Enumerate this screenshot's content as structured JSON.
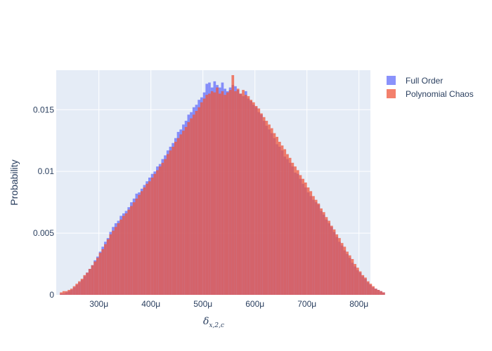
{
  "chart_data": {
    "type": "histogram",
    "xlabel": "δ",
    "xlabel_subscript": "x,2,c",
    "ylabel": "Probability",
    "x_range": [
      0.000218,
      0.000822
    ],
    "y_range": [
      0,
      0.0182
    ],
    "x_ticks": [
      {
        "value": 0.0003,
        "label": "300μ"
      },
      {
        "value": 0.0004,
        "label": "400μ"
      },
      {
        "value": 0.0005,
        "label": "500μ"
      },
      {
        "value": 0.0006,
        "label": "600μ"
      },
      {
        "value": 0.0007,
        "label": "700μ"
      },
      {
        "value": 0.0008,
        "label": "800μ"
      }
    ],
    "y_ticks": [
      {
        "value": 0,
        "label": "0"
      },
      {
        "value": 0.005,
        "label": "0.005"
      },
      {
        "value": 0.01,
        "label": "0.01"
      },
      {
        "value": 0.015,
        "label": "0.015"
      }
    ],
    "grid": true,
    "legend_position": "top-right",
    "bin_start": 0.000225,
    "bin_width": 5e-06,
    "series": [
      {
        "name": "Full Order",
        "color": "#636efa",
        "opacity": 0.75,
        "values": [
          0.0001,
          0.0001,
          0.0002,
          0.0003,
          0.0004,
          0.0006,
          0.0008,
          0.001,
          0.0012,
          0.0015,
          0.0018,
          0.0021,
          0.0024,
          0.0028,
          0.0031,
          0.0035,
          0.0039,
          0.0043,
          0.0046,
          0.0051,
          0.0055,
          0.0058,
          0.006,
          0.0064,
          0.0066,
          0.0068,
          0.0071,
          0.0075,
          0.0078,
          0.0082,
          0.0083,
          0.0086,
          0.0089,
          0.0092,
          0.0095,
          0.0098,
          0.01,
          0.0104,
          0.0106,
          0.011,
          0.0113,
          0.0117,
          0.012,
          0.0123,
          0.0127,
          0.0132,
          0.0134,
          0.0138,
          0.0141,
          0.0146,
          0.0148,
          0.0152,
          0.0154,
          0.0158,
          0.016,
          0.0164,
          0.0171,
          0.0172,
          0.0168,
          0.0173,
          0.017,
          0.0168,
          0.0172,
          0.0167,
          0.0165,
          0.0168,
          0.017,
          0.0169,
          0.0166,
          0.0163,
          0.0161,
          0.0165,
          0.0159,
          0.0157,
          0.0154,
          0.0152,
          0.0148,
          0.0146,
          0.0141,
          0.0137,
          0.0134,
          0.0131,
          0.0127,
          0.0122,
          0.012,
          0.0117,
          0.0112,
          0.011,
          0.0107,
          0.0104,
          0.0099,
          0.0098,
          0.0094,
          0.009,
          0.0087,
          0.0083,
          0.008,
          0.0077,
          0.0075,
          0.0073,
          0.0068,
          0.0065,
          0.0061,
          0.0058,
          0.0055,
          0.0051,
          0.0047,
          0.0043,
          0.004,
          0.0036,
          0.0033,
          0.003,
          0.0026,
          0.0023,
          0.002,
          0.0018,
          0.0015,
          0.0013,
          0.001,
          0.0008,
          0.0006,
          0.0005,
          0.0004,
          0.0003,
          0.0002
        ]
      },
      {
        "name": "Polynomial Chaos",
        "color": "#ef553b",
        "opacity": 0.75,
        "values": [
          0.0002,
          0.0003,
          0.0003,
          0.0004,
          0.0005,
          0.0007,
          0.0009,
          0.0011,
          0.0013,
          0.0016,
          0.0018,
          0.0021,
          0.0024,
          0.0027,
          0.003,
          0.0034,
          0.0037,
          0.0041,
          0.0045,
          0.0049,
          0.0052,
          0.0055,
          0.0058,
          0.0061,
          0.0064,
          0.0066,
          0.0069,
          0.0072,
          0.0075,
          0.0078,
          0.0081,
          0.0084,
          0.0087,
          0.009,
          0.0092,
          0.0095,
          0.0098,
          0.0101,
          0.0104,
          0.0107,
          0.011,
          0.0114,
          0.0117,
          0.012,
          0.0124,
          0.0127,
          0.013,
          0.0133,
          0.0136,
          0.014,
          0.0143,
          0.0146,
          0.0149,
          0.0152,
          0.0156,
          0.0159,
          0.0162,
          0.0163,
          0.0165,
          0.0164,
          0.0168,
          0.0163,
          0.0165,
          0.0162,
          0.0164,
          0.0166,
          0.0178,
          0.0165,
          0.0167,
          0.0163,
          0.0166,
          0.0162,
          0.0161,
          0.0158,
          0.0156,
          0.0153,
          0.0151,
          0.0147,
          0.0144,
          0.0141,
          0.0138,
          0.0135,
          0.0131,
          0.0128,
          0.0124,
          0.0121,
          0.0118,
          0.0114,
          0.0111,
          0.0107,
          0.0104,
          0.0101,
          0.0097,
          0.0094,
          0.0091,
          0.0087,
          0.0084,
          0.008,
          0.0077,
          0.0074,
          0.007,
          0.0067,
          0.0063,
          0.006,
          0.0056,
          0.0053,
          0.0049,
          0.0046,
          0.0042,
          0.0039,
          0.0035,
          0.0032,
          0.0029,
          0.0025,
          0.0022,
          0.0019,
          0.0016,
          0.0014,
          0.0011,
          0.0009,
          0.0007,
          0.0005,
          0.0004,
          0.0003,
          0.0002
        ]
      }
    ]
  }
}
